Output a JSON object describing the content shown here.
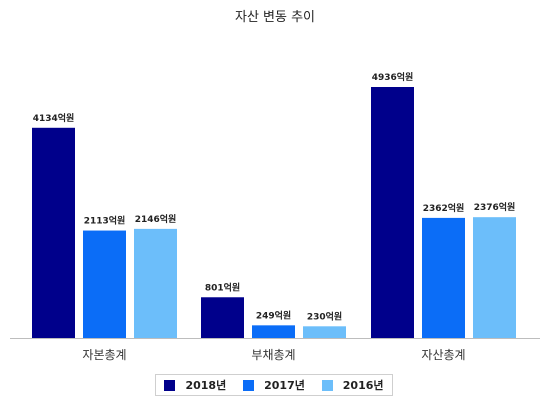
{
  "chart_data": {
    "type": "bar",
    "title": "자산 변동 추이",
    "categories": [
      "자본총계",
      "부채총계",
      "자산총계"
    ],
    "unit_suffix": "억원",
    "series": [
      {
        "name": "2018년",
        "color": "#00008B",
        "values": [
          4134,
          801,
          4936
        ]
      },
      {
        "name": "2017년",
        "color": "#0B6DF7",
        "values": [
          2113,
          249,
          2362
        ]
      },
      {
        "name": "2016년",
        "color": "#6CBEFA",
        "values": [
          2146,
          230,
          2376
        ]
      }
    ],
    "ylim": [
      0,
      5000
    ],
    "grid": false,
    "legend_position": "bottom"
  }
}
